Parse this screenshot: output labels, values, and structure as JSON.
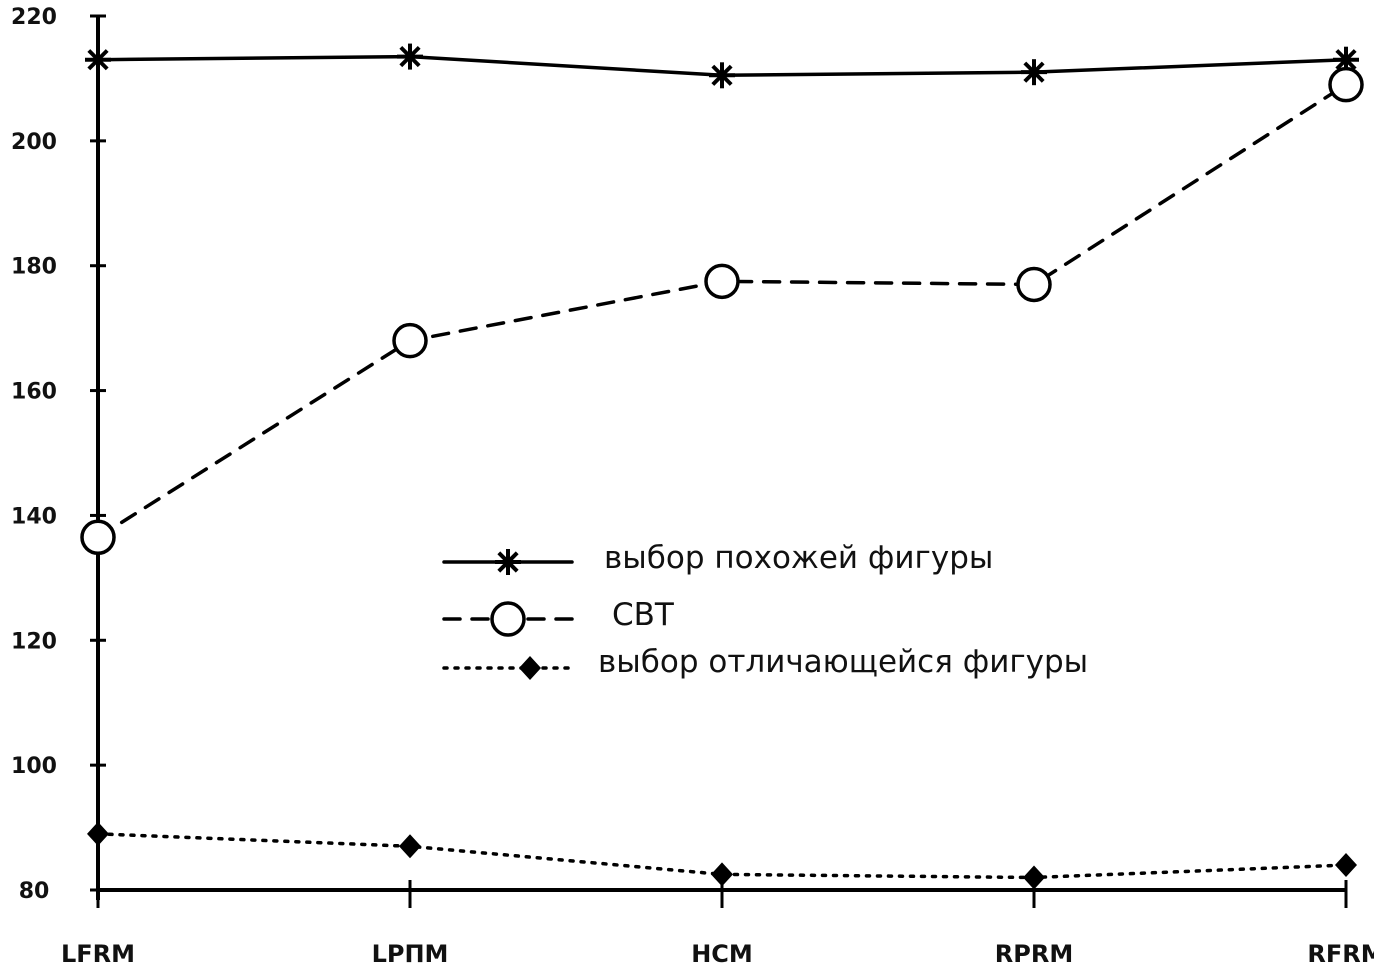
{
  "chart_data": {
    "type": "line",
    "categories": [
      "LFRM",
      "LPΠM",
      "HCM",
      "RPRM",
      "RFRM"
    ],
    "ylim": [
      80,
      220
    ],
    "yticks": [
      "80",
      "100",
      "120",
      "140",
      "160",
      "180",
      "200",
      "220"
    ],
    "grid": false,
    "legend_position": "center",
    "series": [
      {
        "name": "выбор похожей фигуры",
        "values": [
          213,
          213.5,
          210.5,
          211,
          213
        ],
        "style": "solid",
        "marker": "star",
        "color": "#000000"
      },
      {
        "name": "СВТ",
        "values": [
          136.5,
          168,
          177.5,
          177,
          209
        ],
        "style": "dashed",
        "marker": "circle",
        "color": "#000000"
      },
      {
        "name": "выбор отличающейся фигуры",
        "values": [
          89,
          87,
          82.5,
          82,
          84
        ],
        "style": "dotted",
        "marker": "diamond",
        "color": "#000000"
      }
    ]
  }
}
